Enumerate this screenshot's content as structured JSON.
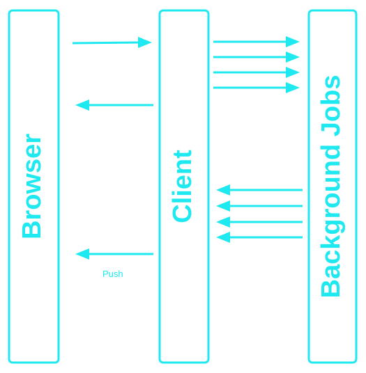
{
  "diagram": {
    "lanes": [
      {
        "id": "browser",
        "label": "Browser"
      },
      {
        "id": "client",
        "label": "Client"
      },
      {
        "id": "background",
        "label": "Background Jobs"
      }
    ],
    "annotations": {
      "push_label": "Push"
    },
    "arrows": [
      {
        "from": "browser",
        "to": "client"
      },
      {
        "from": "client",
        "to": "browser"
      },
      {
        "from": "client",
        "to": "background"
      },
      {
        "from": "client",
        "to": "background"
      },
      {
        "from": "client",
        "to": "background"
      },
      {
        "from": "client",
        "to": "background"
      },
      {
        "from": "background",
        "to": "client"
      },
      {
        "from": "background",
        "to": "client"
      },
      {
        "from": "background",
        "to": "client"
      },
      {
        "from": "background",
        "to": "client"
      },
      {
        "from": "client",
        "to": "browser"
      }
    ]
  },
  "colors": {
    "accent": "#1ee9f0",
    "background": "#ffffff"
  }
}
